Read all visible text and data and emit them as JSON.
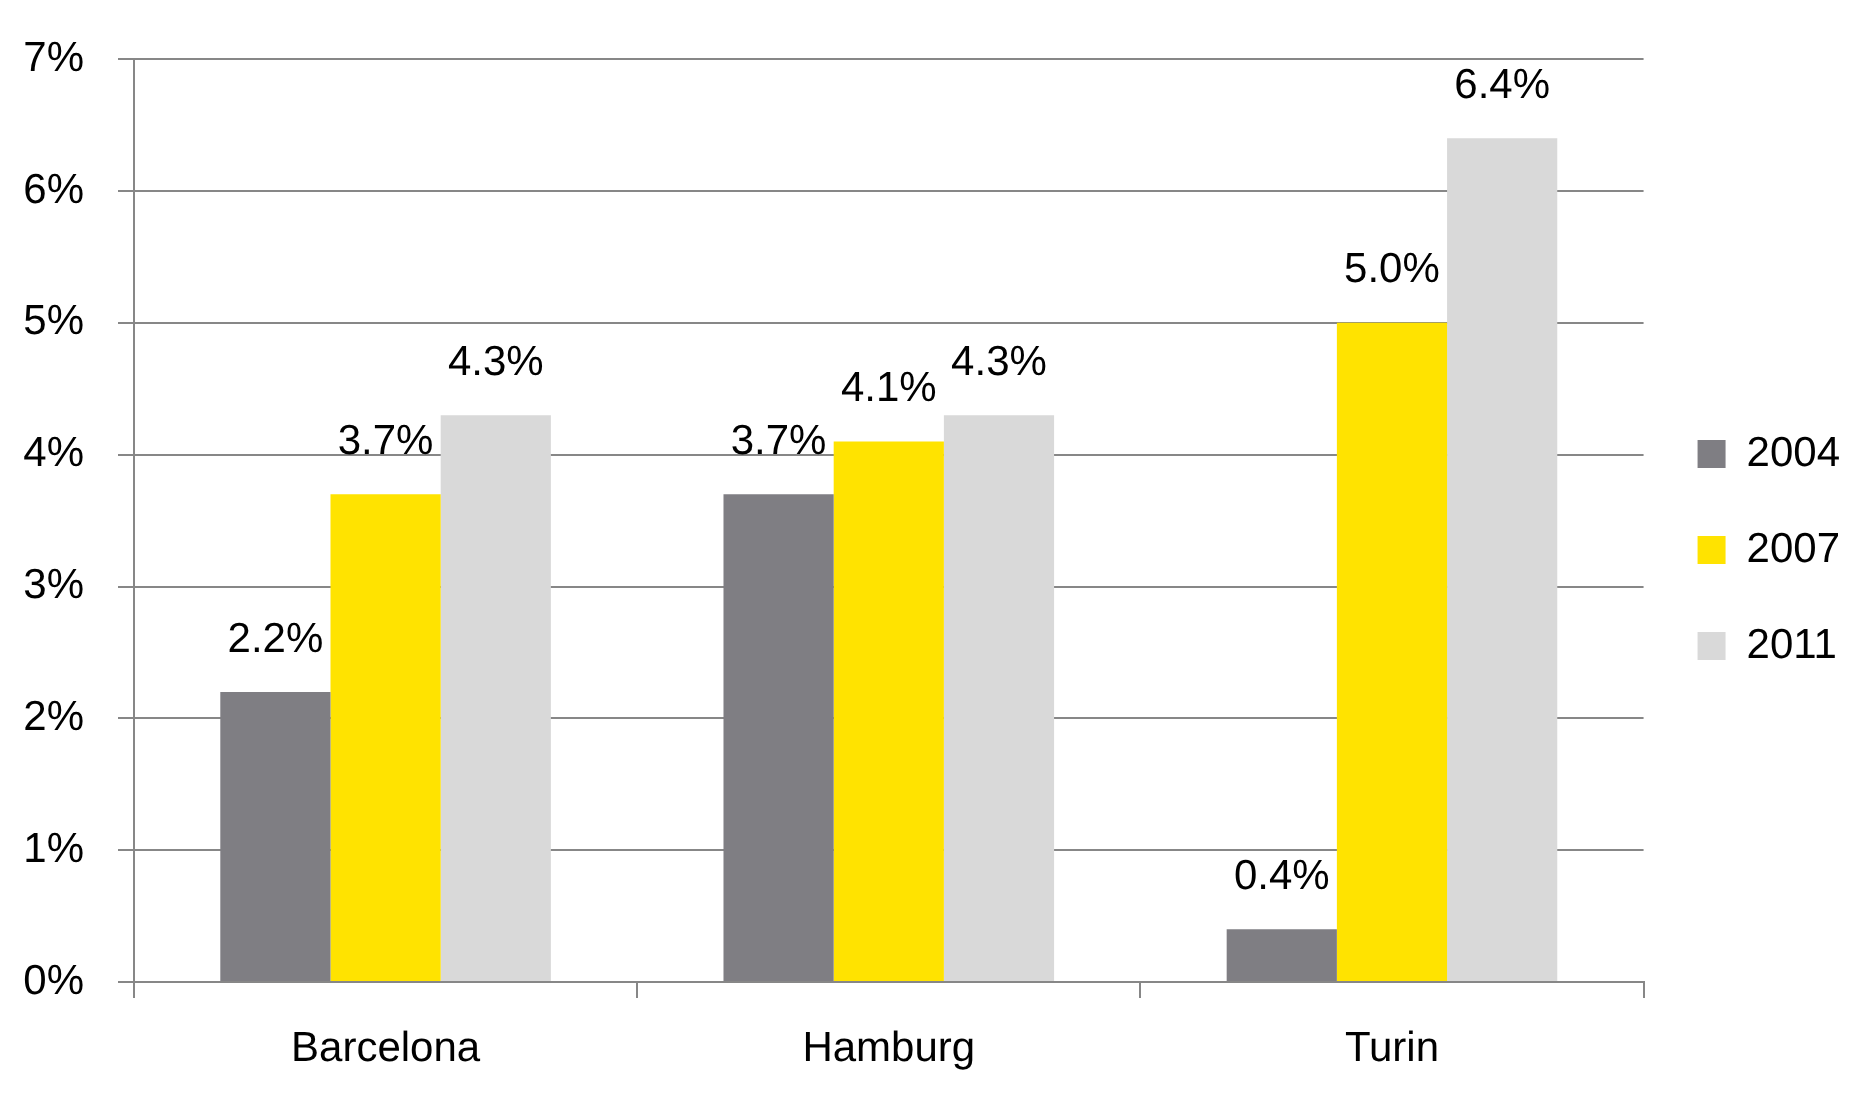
{
  "chart_data": {
    "type": "bar",
    "categories": [
      "Barcelona",
      "Hamburg",
      "Turin"
    ],
    "series": [
      {
        "name": "2004",
        "color": "#7f7e83",
        "values": [
          2.2,
          3.7,
          0.4
        ],
        "value_labels": [
          "2.2%",
          "3.7%",
          "0.4%"
        ]
      },
      {
        "name": "2007",
        "color": "#ffe300",
        "values": [
          3.7,
          4.1,
          5.0
        ],
        "value_labels": [
          "3.7%",
          "4.1%",
          "5.0%"
        ]
      },
      {
        "name": "2011",
        "color": "#d9d9d9",
        "values": [
          4.3,
          4.3,
          6.4
        ],
        "value_labels": [
          "4.3%",
          "4.3%",
          "6.4%"
        ]
      }
    ],
    "ylim": [
      0,
      7
    ],
    "yticks": [
      {
        "value": 0,
        "label": "0%"
      },
      {
        "value": 1,
        "label": "1%"
      },
      {
        "value": 2,
        "label": "2%"
      },
      {
        "value": 3,
        "label": "3%"
      },
      {
        "value": 4,
        "label": "4%"
      },
      {
        "value": 5,
        "label": "5%"
      },
      {
        "value": 6,
        "label": "6%"
      },
      {
        "value": 7,
        "label": "7%"
      }
    ],
    "grid": "y",
    "legend": "right"
  }
}
